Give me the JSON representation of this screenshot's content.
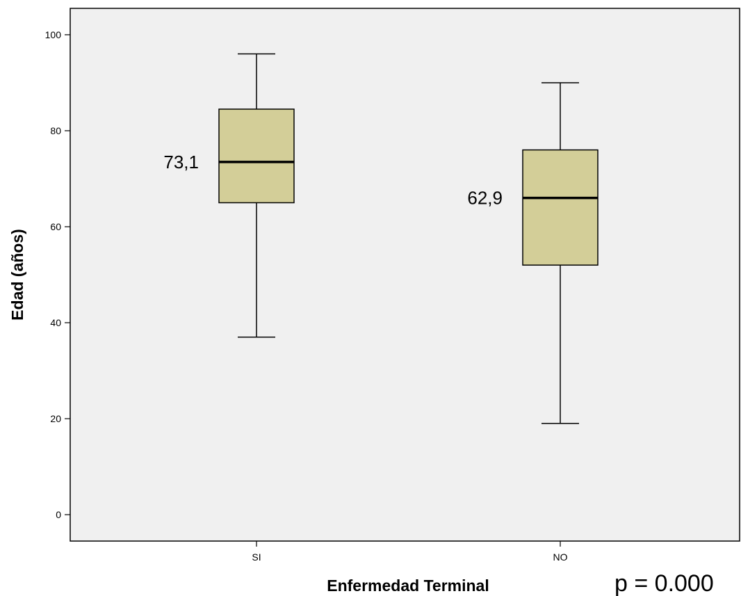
{
  "chart_data": {
    "type": "box",
    "xlabel": "Enfermedad Terminal",
    "ylabel": "Edad (años)",
    "ylim": [
      -5.5,
      105.5
    ],
    "yticks": [
      0,
      20,
      40,
      60,
      80,
      100
    ],
    "categories": [
      "SI",
      "NO"
    ],
    "boxes": [
      {
        "category": "SI",
        "min": 37,
        "q1": 65,
        "median": 73.5,
        "q3": 84.5,
        "max": 96,
        "label": "73,1"
      },
      {
        "category": "NO",
        "min": 19,
        "q1": 52,
        "median": 66,
        "q3": 76,
        "max": 90,
        "label": "62,9"
      }
    ],
    "annotation": "p = 0.000",
    "colors": {
      "plot_background": "#f0f0f0",
      "box_fill": "#d3ce98",
      "stroke": "#000000"
    },
    "grid": false
  }
}
